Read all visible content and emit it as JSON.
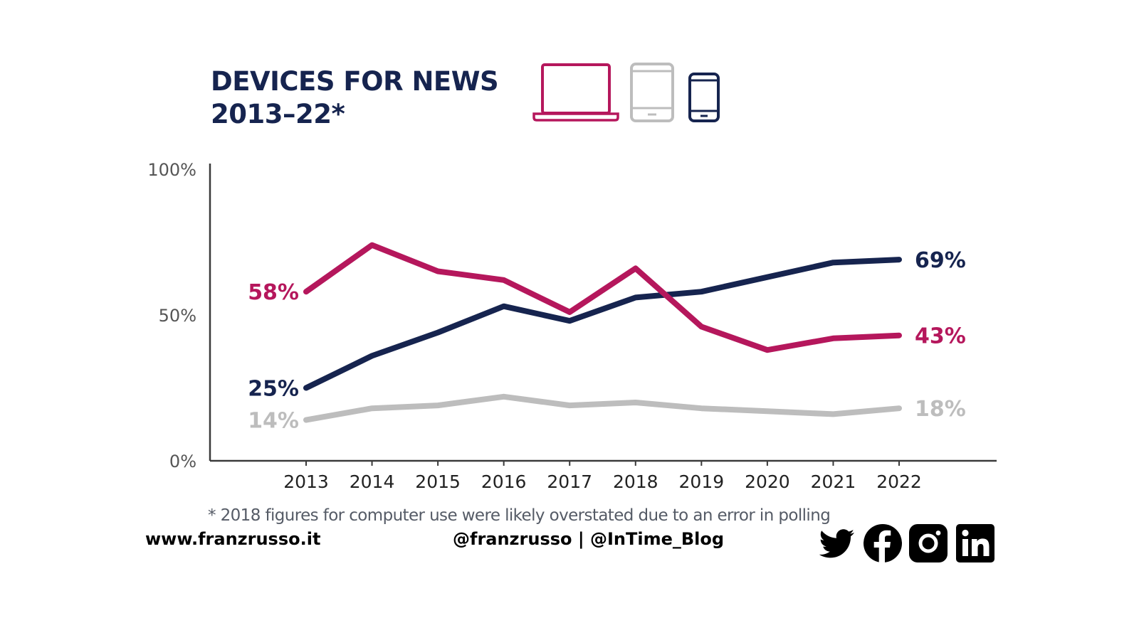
{
  "title": {
    "line1": "DEVICES FOR NEWS",
    "line2": "2013–22*"
  },
  "legend_icons": [
    {
      "name": "laptop-icon",
      "series": "Computer",
      "color": "#b5175c"
    },
    {
      "name": "tablet-icon",
      "series": "Tablet",
      "color": "#bdbdbd"
    },
    {
      "name": "smartphone-icon",
      "series": "Smartphone",
      "color": "#16244f"
    }
  ],
  "chart_data": {
    "type": "line",
    "title": "DEVICES FOR NEWS 2013–22*",
    "xlabel": "",
    "ylabel": "",
    "ylim": [
      0,
      100
    ],
    "yticks": [
      "0%",
      "50%",
      "100%"
    ],
    "ytick_values": [
      0,
      50,
      100
    ],
    "categories": [
      "2013",
      "2014",
      "2015",
      "2016",
      "2017",
      "2018",
      "2019",
      "2020",
      "2021",
      "2022"
    ],
    "grid": false,
    "series": [
      {
        "name": "Computer",
        "color": "#b5175c",
        "values": [
          58,
          74,
          65,
          62,
          51,
          66,
          46,
          38,
          42,
          43
        ],
        "start_label": "58%",
        "end_label": "43%"
      },
      {
        "name": "Smartphone",
        "color": "#16244f",
        "values": [
          25,
          36,
          44,
          53,
          48,
          56,
          58,
          63,
          68,
          69
        ],
        "start_label": "25%",
        "end_label": "69%"
      },
      {
        "name": "Tablet",
        "color": "#bdbdbd",
        "values": [
          14,
          18,
          19,
          22,
          19,
          20,
          18,
          17,
          16,
          18
        ],
        "start_label": "14%",
        "end_label": "18%"
      }
    ]
  },
  "footnote": "* 2018 figures for computer use were likely overstated due to an error in polling",
  "footer": {
    "website": "www.franzrusso.it",
    "handles": "@franzrusso | @InTime_Blog"
  },
  "social_icons": [
    "twitter-icon",
    "facebook-icon",
    "instagram-icon",
    "linkedin-icon"
  ]
}
